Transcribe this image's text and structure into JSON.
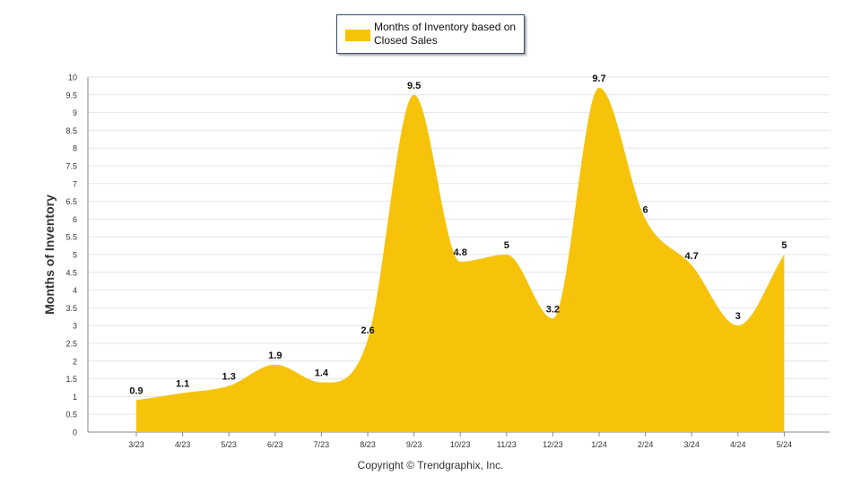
{
  "colors": {
    "fill": "#F6C30A",
    "grid": "#e6e6e6",
    "axis": "#888888",
    "text": "#333333"
  },
  "footer": {
    "copyright": "Copyright © Trendgraphix, Inc."
  },
  "chart_data": {
    "type": "area",
    "title": "",
    "xlabel": "",
    "ylabel": "Months of Inventory",
    "ylim": [
      0,
      10
    ],
    "yticks": [
      "0",
      "0.5",
      "1",
      "1.5",
      "2",
      "2.5",
      "3",
      "3.5",
      "4",
      "4.5",
      "5",
      "5.5",
      "6",
      "6.5",
      "7",
      "7.5",
      "8",
      "8.5",
      "9",
      "9.5",
      "10"
    ],
    "categories": [
      "3/23",
      "4/23",
      "5/23",
      "6/23",
      "7/23",
      "8/23",
      "9/23",
      "10/23",
      "11/23",
      "12/23",
      "1/24",
      "2/24",
      "3/24",
      "4/24",
      "5/24"
    ],
    "series": [
      {
        "name": "Months of Inventory based on Closed Sales",
        "values": [
          0.9,
          1.1,
          1.3,
          1.9,
          1.4,
          2.6,
          9.5,
          4.8,
          5,
          3.2,
          9.7,
          6,
          4.7,
          3,
          5
        ],
        "labels": [
          "0.9",
          "1.1",
          "1.3",
          "1.9",
          "1.4",
          "2.6",
          "9.5",
          "4.8",
          "5",
          "3.2",
          "9.7",
          "6",
          "4.7",
          "3",
          "5"
        ]
      }
    ],
    "legend": "top-center",
    "grid": true
  }
}
